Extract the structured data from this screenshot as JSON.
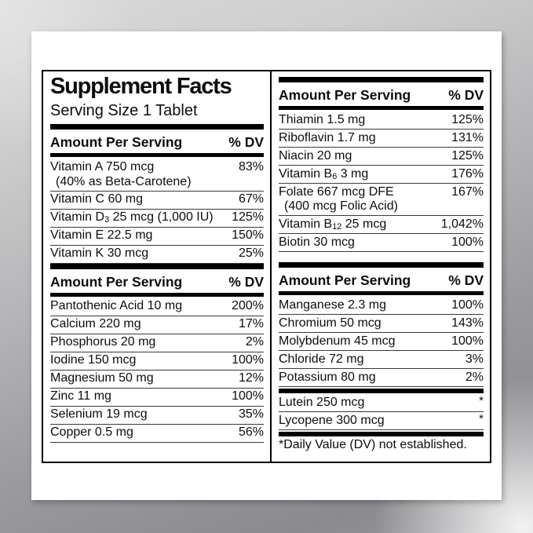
{
  "panel": {
    "title": "Supplement Facts",
    "serving_size": "Serving Size 1 Tablet",
    "column_header": {
      "amount": "Amount Per Serving",
      "dv": "% DV"
    },
    "footnote": "*Daily Value (DV) not established.",
    "left_column": {
      "section1_rows": [
        {
          "pre": "Vitamin A 750 mcg",
          "note": "(40% as Beta-Carotene)",
          "dv": "83%"
        },
        {
          "pre": "Vitamin C 60 mg",
          "dv": "67%"
        },
        {
          "pre": "Vitamin D",
          "sub": "3",
          "post": " 25 mcg (1,000 IU)",
          "dv": "125%"
        },
        {
          "pre": "Vitamin E 22.5 mg",
          "dv": "150%"
        },
        {
          "pre": "Vitamin K 30 mcg",
          "dv": "25%"
        }
      ],
      "section2_rows": [
        {
          "pre": "Pantothenic Acid 10 mg",
          "dv": "200%"
        },
        {
          "pre": "Calcium 220 mg",
          "dv": "17%"
        },
        {
          "pre": "Phosphorus 20 mg",
          "dv": "2%"
        },
        {
          "pre": "Iodine 150 mcg",
          "dv": "100%"
        },
        {
          "pre": "Magnesium 50 mg",
          "dv": "12%"
        },
        {
          "pre": "Zinc 11 mg",
          "dv": "100%"
        },
        {
          "pre": "Selenium 19 mcg",
          "dv": "35%"
        },
        {
          "pre": "Copper 0.5 mg",
          "dv": "56%"
        }
      ]
    },
    "right_column": {
      "section1_rows": [
        {
          "pre": "Thiamin 1.5 mg",
          "dv": "125%"
        },
        {
          "pre": "Riboflavin 1.7 mg",
          "dv": "131%"
        },
        {
          "pre": "Niacin 20 mg",
          "dv": "125%"
        },
        {
          "pre": "Vitamin B",
          "sub": "6",
          "post": " 3 mg",
          "dv": "176%"
        },
        {
          "pre": "Folate 667 mcg DFE",
          "note": "(400 mcg Folic Acid)",
          "dv": "167%"
        },
        {
          "pre": "Vitamin B",
          "sub": "12",
          "post": " 25 mcg",
          "dv": "1,042%"
        },
        {
          "pre": "Biotin 30 mcg",
          "dv": "100%"
        }
      ],
      "section2_rows": [
        {
          "pre": "Manganese 2.3 mg",
          "dv": "100%"
        },
        {
          "pre": "Chromium 50 mcg",
          "dv": "143%"
        },
        {
          "pre": "Molybdenum 45 mcg",
          "dv": "100%"
        },
        {
          "pre": "Chloride 72 mg",
          "dv": "3%"
        },
        {
          "pre": "Potassium 80 mg",
          "dv": "2%"
        }
      ],
      "section3_rows": [
        {
          "pre": "Lutein 250 mcg",
          "dv": "*"
        },
        {
          "pre": "Lycopene 300 mcg",
          "dv": "*"
        }
      ]
    }
  },
  "colors": {
    "text": "#0d0d0d",
    "rule": "#3a3a3a",
    "bar": "#000000",
    "page": "#ffffff",
    "frame_light": "#dadada",
    "frame_dark": "#8b8b8f"
  }
}
